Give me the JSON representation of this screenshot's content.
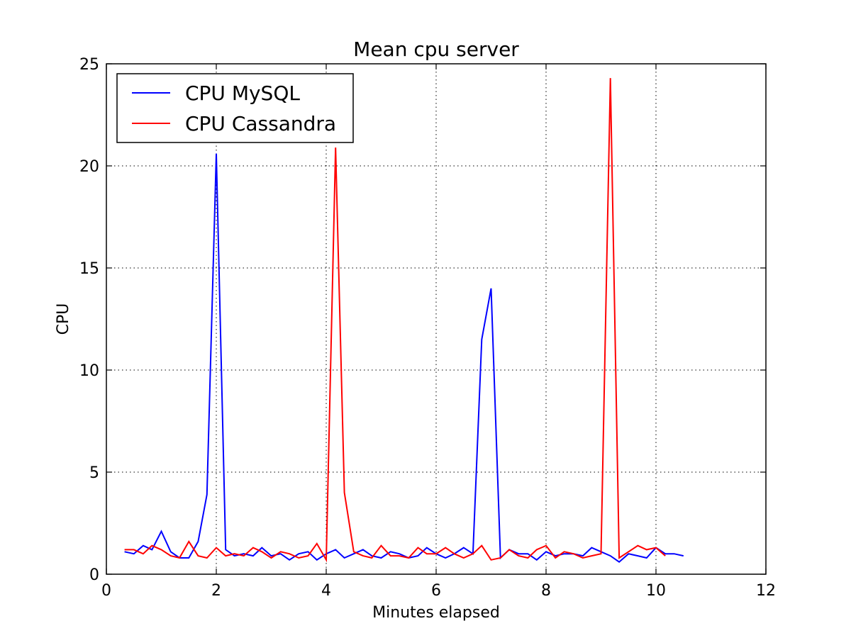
{
  "chart_data": {
    "type": "line",
    "title": "Mean cpu server",
    "xlabel": "Minutes elapsed",
    "ylabel": "CPU",
    "xlim": [
      0,
      12
    ],
    "ylim": [
      0,
      25
    ],
    "xticks": [
      0,
      2,
      4,
      6,
      8,
      10,
      12
    ],
    "yticks": [
      0,
      5,
      10,
      15,
      20,
      25
    ],
    "grid": true,
    "legend_position": "top-left",
    "series": [
      {
        "name": "CPU MySQL",
        "color": "#0000ff",
        "x": [
          0.33,
          0.5,
          0.67,
          0.83,
          1.0,
          1.17,
          1.33,
          1.5,
          1.67,
          1.83,
          2.0,
          2.17,
          2.33,
          2.5,
          2.67,
          2.83,
          3.0,
          3.17,
          3.33,
          3.5,
          3.67,
          3.83,
          4.0,
          4.17,
          4.33,
          4.5,
          4.67,
          4.83,
          5.0,
          5.17,
          5.33,
          5.5,
          5.67,
          5.83,
          6.0,
          6.17,
          6.33,
          6.5,
          6.67,
          6.83,
          7.0,
          7.17,
          7.33,
          7.5,
          7.67,
          7.83,
          8.0,
          8.17,
          8.33,
          8.5,
          8.67,
          8.83,
          9.0,
          9.17,
          9.33,
          9.5,
          9.67,
          9.83,
          10.0,
          10.17,
          10.33,
          10.5
        ],
        "y": [
          1.1,
          1.0,
          1.4,
          1.2,
          2.1,
          1.1,
          0.8,
          0.8,
          1.6,
          3.9,
          20.6,
          1.2,
          0.9,
          1.0,
          0.9,
          1.3,
          0.9,
          1.0,
          0.7,
          1.0,
          1.1,
          0.7,
          1.0,
          1.2,
          0.8,
          1.0,
          1.2,
          0.9,
          0.8,
          1.1,
          1.0,
          0.8,
          0.9,
          1.3,
          1.0,
          0.8,
          1.0,
          1.3,
          1.0,
          11.5,
          14.0,
          0.8,
          1.2,
          1.0,
          1.0,
          0.7,
          1.1,
          0.9,
          1.0,
          1.0,
          0.9,
          1.3,
          1.1,
          0.9,
          0.6,
          1.0,
          0.9,
          0.8,
          1.3,
          1.0,
          1.0,
          0.9
        ]
      },
      {
        "name": "CPU Cassandra",
        "color": "#ff0000",
        "x": [
          0.33,
          0.5,
          0.67,
          0.83,
          1.0,
          1.17,
          1.33,
          1.5,
          1.67,
          1.83,
          2.0,
          2.17,
          2.33,
          2.5,
          2.67,
          2.83,
          3.0,
          3.17,
          3.33,
          3.5,
          3.67,
          3.83,
          4.0,
          4.17,
          4.33,
          4.5,
          4.67,
          4.83,
          5.0,
          5.17,
          5.33,
          5.5,
          5.67,
          5.83,
          6.0,
          6.17,
          6.33,
          6.5,
          6.67,
          6.83,
          7.0,
          7.17,
          7.33,
          7.5,
          7.67,
          7.83,
          8.0,
          8.17,
          8.33,
          8.5,
          8.67,
          8.83,
          9.0,
          9.17,
          9.33,
          9.5,
          9.67,
          9.83,
          10.0,
          10.17
        ],
        "y": [
          1.2,
          1.2,
          1.0,
          1.4,
          1.2,
          0.9,
          0.8,
          1.6,
          0.9,
          0.8,
          1.3,
          0.9,
          1.0,
          0.9,
          1.3,
          1.1,
          0.8,
          1.1,
          1.0,
          0.8,
          0.9,
          1.5,
          0.7,
          20.9,
          4.0,
          1.1,
          0.9,
          0.8,
          1.4,
          0.9,
          0.9,
          0.8,
          1.3,
          1.0,
          1.0,
          1.3,
          1.0,
          0.8,
          1.0,
          1.4,
          0.7,
          0.8,
          1.2,
          0.9,
          0.8,
          1.2,
          1.4,
          0.8,
          1.1,
          1.0,
          0.8,
          0.9,
          1.0,
          24.3,
          0.8,
          1.1,
          1.4,
          1.2,
          1.3,
          0.9
        ]
      }
    ]
  }
}
